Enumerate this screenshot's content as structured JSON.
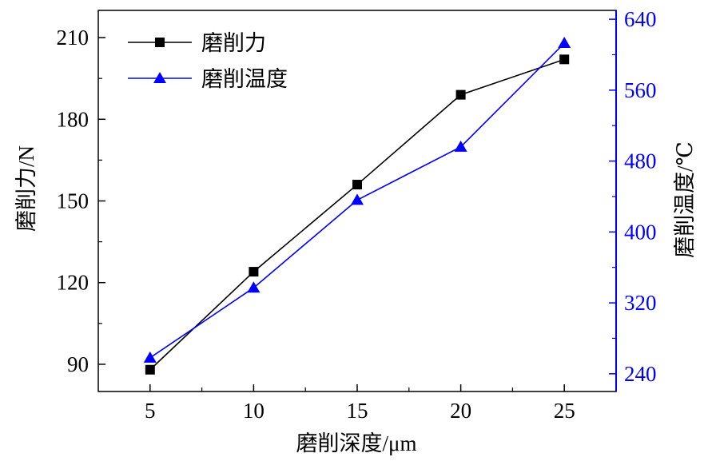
{
  "chart_data": {
    "type": "line",
    "xlabel": "磨削深度/μm",
    "ylabel_left": "磨削力/N",
    "ylabel_right": "磨削温度/℃",
    "x": [
      5,
      10,
      15,
      20,
      25
    ],
    "xlim": [
      2.5,
      27.5
    ],
    "xticks": [
      "5",
      "10",
      "15",
      "20",
      "25"
    ],
    "ylim_left": [
      80,
      220
    ],
    "yticks_left": [
      "90",
      "120",
      "150",
      "180",
      "210"
    ],
    "ylim_right": [
      220,
      650
    ],
    "yticks_right": [
      "240",
      "320",
      "400",
      "480",
      "560",
      "640"
    ],
    "grid": false,
    "legend_position": "top-left",
    "series": [
      {
        "name": "磨削力",
        "axis": "left",
        "marker": "square",
        "color": "#000000",
        "values": [
          88,
          124,
          156,
          189,
          202
        ]
      },
      {
        "name": "磨削温度",
        "axis": "right",
        "marker": "triangle",
        "color": "#0000ff",
        "values": [
          258,
          337,
          436,
          496,
          613
        ]
      }
    ]
  },
  "colors": {
    "left_axis": "#000000",
    "right_axis": "#0000ff"
  }
}
